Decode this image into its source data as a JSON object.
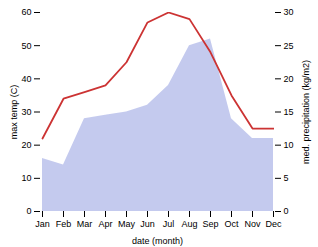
{
  "chart_data": {
    "type": "line",
    "categories": [
      "Jan",
      "Feb",
      "Mar",
      "Apr",
      "May",
      "Jun",
      "Jul",
      "Aug",
      "Sep",
      "Oct",
      "Nov",
      "Dec"
    ],
    "xlabel": "date (month)",
    "ylabel": "max temp (C)",
    "y2label": "med. precipitation (kg/m2)",
    "series": [
      {
        "type": "area",
        "axis": "y2",
        "color": "#b0b8e8",
        "values": [
          8,
          7,
          14,
          14.5,
          15,
          16,
          19,
          25,
          26,
          14,
          11,
          11
        ]
      },
      {
        "type": "line",
        "color": "#cc3333",
        "values": [
          22,
          34,
          36,
          38,
          45,
          57,
          60,
          58,
          48,
          35,
          25,
          25
        ]
      }
    ],
    "ylim": [
      0,
      60
    ],
    "yticks": [
      0,
      10,
      20,
      30,
      40,
      50,
      60
    ],
    "y2lim": [
      0,
      30
    ],
    "y2ticks": [
      0,
      5,
      10,
      15,
      20,
      25,
      30
    ]
  }
}
